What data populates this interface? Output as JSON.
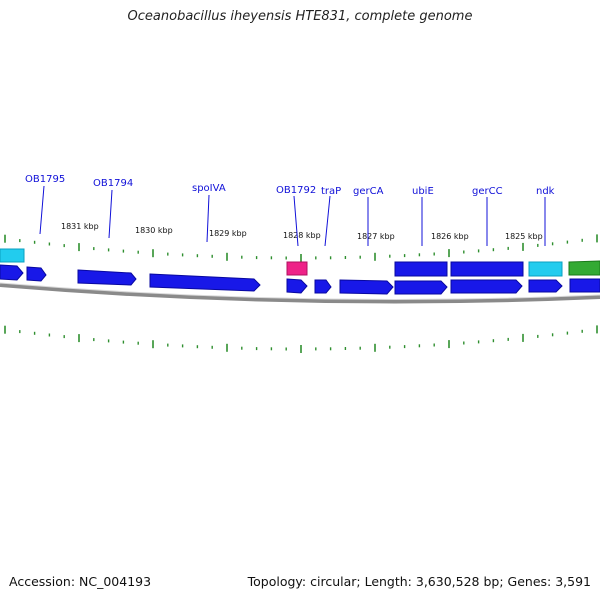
{
  "title": "Oceanobacillus iheyensis HTE831, complete genome",
  "accession": "Accession: NC_004193",
  "summary": "Topology: circular; Length: 3,630,528 bp; Genes: 3,591",
  "colors": {
    "gene_label": "#1010d8",
    "gene_forward": "#1818e8",
    "gene_other": "#1818e8",
    "backbone": "#8a8a8a",
    "tick": "#2f8f2f",
    "cyan": "#22ccee",
    "magenta": "#ee2288",
    "green": "#33aa33"
  },
  "tick_labels": [
    "1831 kbp",
    "1830 kbp",
    "1829 kbp",
    "1828 kbp",
    "1827 kbp",
    "1826 kbp",
    "1825 kbp"
  ],
  "gene_labels": [
    "OB1795",
    "OB1794",
    "spoIVA",
    "OB1792",
    "traP",
    "gerCA",
    "ubiE",
    "gerCC",
    "ndk"
  ]
}
